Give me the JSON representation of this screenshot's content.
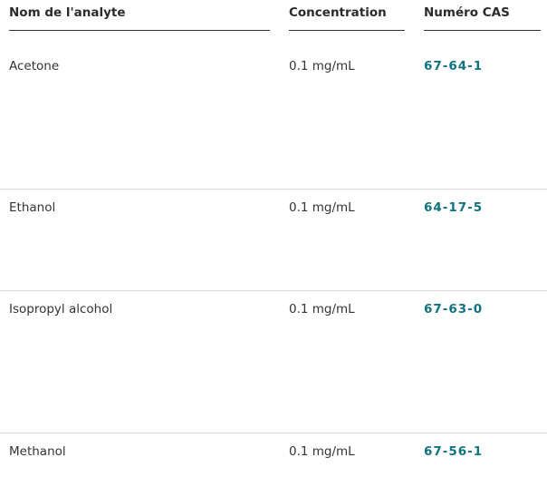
{
  "table": {
    "headers": [
      "Nom de l'analyte",
      "Concentration",
      "Numéro CAS"
    ],
    "rows": [
      {
        "name": "Acetone",
        "concentration": "0.1 mg/mL",
        "cas": "67-64-1"
      },
      {
        "name": "Ethanol",
        "concentration": "0.1 mg/mL",
        "cas": "64-17-5"
      },
      {
        "name": "Isopropyl alcohol",
        "concentration": "0.1 mg/mL",
        "cas": "67-63-0"
      },
      {
        "name": "Methanol",
        "concentration": "0.1 mg/mL",
        "cas": "67-56-1"
      }
    ],
    "link_color": "#0f7380"
  }
}
